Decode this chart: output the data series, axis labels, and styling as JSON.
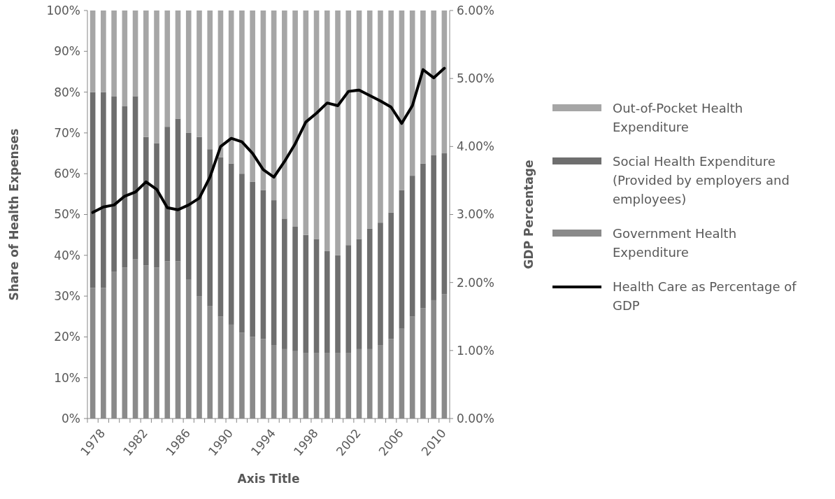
{
  "chart_data": {
    "type": "bar",
    "stacked": true,
    "xlabel": "Axis Title",
    "ylabel": "Share of Health Expenses",
    "y2label": "GDP Percentage",
    "categories": [
      "1978",
      null,
      null,
      null,
      "1982",
      null,
      null,
      null,
      "1986",
      null,
      null,
      null,
      "1990",
      null,
      null,
      null,
      "1994",
      null,
      null,
      null,
      "1998",
      null,
      null,
      null,
      "2002",
      null,
      null,
      null,
      "2006",
      null,
      null,
      null,
      "2010",
      null
    ],
    "series": [
      {
        "name": "Government Health Expenditure",
        "color": "#8a8a8a",
        "values": [
          32,
          32,
          36,
          37,
          39,
          37.5,
          37,
          38.5,
          38.5,
          34,
          30,
          27.5,
          25,
          23,
          21,
          20,
          19.5,
          18,
          17,
          16.5,
          16,
          16,
          16,
          16,
          16,
          17,
          17,
          18,
          19.5,
          22,
          25,
          27,
          29,
          30.5
        ]
      },
      {
        "name": "Social Health Expenditure (Provided by employers and employees)",
        "color": "#6e6e6e",
        "values": [
          48,
          48,
          43,
          39.5,
          40,
          31.5,
          30.5,
          33,
          35,
          36,
          39,
          38.5,
          39,
          39.5,
          39,
          38,
          36.5,
          35.5,
          32,
          30.5,
          29,
          28,
          25,
          24,
          26.5,
          27,
          29.5,
          30,
          31,
          34,
          34.5,
          35.5,
          35.5,
          34.5
        ]
      },
      {
        "name": "Out-of-Pocket Health Expenditure",
        "color": "#a6a6a6",
        "values": [
          20,
          20,
          21,
          23.5,
          21,
          31,
          32.5,
          28.5,
          26.5,
          30,
          31,
          34,
          36,
          37.5,
          40,
          42,
          44,
          46.5,
          51,
          53,
          55,
          56,
          59,
          60,
          57.5,
          56,
          53.5,
          52,
          49.5,
          44,
          40.5,
          37.5,
          35.5,
          35
        ]
      },
      {
        "name": "Health Care as Percentage of GDP",
        "type": "line",
        "axis": "y2",
        "color": "#000000",
        "values": [
          3.03,
          3.11,
          3.14,
          3.27,
          3.33,
          3.48,
          3.37,
          3.1,
          3.07,
          3.14,
          3.24,
          3.55,
          4.0,
          4.12,
          4.07,
          3.9,
          3.66,
          3.55,
          3.78,
          4.04,
          4.36,
          4.49,
          4.64,
          4.6,
          4.81,
          4.83,
          4.75,
          4.67,
          4.58,
          4.34,
          4.6,
          5.13,
          5.01,
          5.15
        ]
      }
    ],
    "ylim": [
      0,
      100
    ],
    "yticks": [
      {
        "value": 0,
        "label": "0%"
      },
      {
        "value": 10,
        "label": "10%"
      },
      {
        "value": 20,
        "label": "20%"
      },
      {
        "value": 30,
        "label": "30%"
      },
      {
        "value": 40,
        "label": "40%"
      },
      {
        "value": 50,
        "label": "50%"
      },
      {
        "value": 60,
        "label": "60%"
      },
      {
        "value": 70,
        "label": "70%"
      },
      {
        "value": 80,
        "label": "80%"
      },
      {
        "value": 90,
        "label": "90%"
      },
      {
        "value": 100,
        "label": "100%"
      }
    ],
    "y2lim": [
      0,
      6
    ],
    "y2ticks": [
      {
        "value": 0,
        "label": "0.00%"
      },
      {
        "value": 1,
        "label": "1.00%"
      },
      {
        "value": 2,
        "label": "2.00%"
      },
      {
        "value": 3,
        "label": "3.00%"
      },
      {
        "value": 4,
        "label": "4.00%"
      },
      {
        "value": 5,
        "label": "5.00%"
      },
      {
        "value": 6,
        "label": "6.00%"
      }
    ],
    "legend": "right",
    "grid": false
  }
}
